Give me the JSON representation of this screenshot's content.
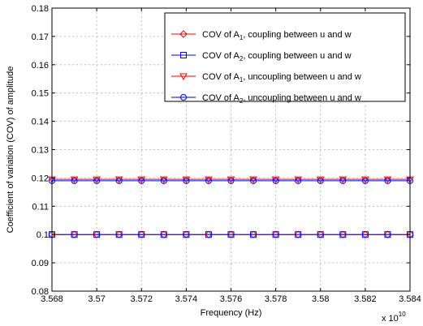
{
  "chart_data": {
    "type": "line",
    "xlabel": "Frequency (Hz)",
    "ylabel": "Coefficient of variation (COV) of amplitude",
    "x_multiplier": {
      "base": "x 10",
      "exponent": "10"
    },
    "xlim": [
      3.568,
      3.584
    ],
    "ylim": [
      0.08,
      0.18
    ],
    "xticks": [
      3.568,
      3.57,
      3.572,
      3.574,
      3.576,
      3.578,
      3.58,
      3.582,
      3.584
    ],
    "xtick_labels": [
      "3.568",
      "3.57",
      "3.572",
      "3.574",
      "3.576",
      "3.578",
      "3.58",
      "3.582",
      "3.584"
    ],
    "yticks": [
      0.08,
      0.09,
      0.1,
      0.11,
      0.12,
      0.13,
      0.14,
      0.15,
      0.16,
      0.17,
      0.18
    ],
    "ytick_labels": [
      "0.08",
      "0.09",
      "0.1",
      "0.11",
      "0.12",
      "0.13",
      "0.14",
      "0.15",
      "0.16",
      "0.17",
      "0.18"
    ],
    "grid": true,
    "legend_position": "top-right",
    "x": [
      3.568,
      3.569,
      3.57,
      3.571,
      3.572,
      3.573,
      3.574,
      3.575,
      3.576,
      3.577,
      3.578,
      3.579,
      3.58,
      3.581,
      3.582,
      3.583,
      3.584
    ],
    "series": [
      {
        "legend_parts": [
          "COV of A",
          "1",
          ", coupling between u and w"
        ],
        "color": "#ff0000",
        "marker": "diamond",
        "values": [
          0.1,
          0.1,
          0.1,
          0.1,
          0.1,
          0.1,
          0.1,
          0.1,
          0.1,
          0.1,
          0.1,
          0.1,
          0.1,
          0.1,
          0.1,
          0.1,
          0.1
        ]
      },
      {
        "legend_parts": [
          "COV of A",
          "2",
          ", coupling between u and w"
        ],
        "color": "#0000ff",
        "marker": "square",
        "values": [
          0.1,
          0.1,
          0.1,
          0.1,
          0.1,
          0.1,
          0.1,
          0.1,
          0.1,
          0.1,
          0.1,
          0.1,
          0.1,
          0.1,
          0.1,
          0.1,
          0.1
        ]
      },
      {
        "legend_parts": [
          "COV of A",
          "1",
          ", uncoupling between u and w"
        ],
        "color": "#ff0000",
        "marker": "triangle-down",
        "values": [
          0.1195,
          0.1195,
          0.1195,
          0.1195,
          0.1195,
          0.1195,
          0.1195,
          0.1195,
          0.1195,
          0.1195,
          0.1195,
          0.1195,
          0.1195,
          0.1195,
          0.1195,
          0.1195,
          0.1195
        ]
      },
      {
        "legend_parts": [
          "COV of A",
          "2",
          ", uncoupling between u and w"
        ],
        "color": "#0000ff",
        "marker": "circle",
        "values": [
          0.119,
          0.119,
          0.119,
          0.119,
          0.119,
          0.119,
          0.119,
          0.119,
          0.119,
          0.119,
          0.119,
          0.119,
          0.119,
          0.119,
          0.119,
          0.119,
          0.119
        ]
      }
    ]
  }
}
